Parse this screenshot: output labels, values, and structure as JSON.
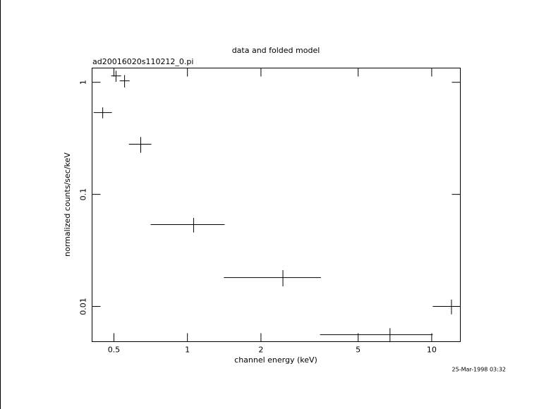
{
  "chart_data": {
    "type": "scatter",
    "title": "data and folded model",
    "subtitle": "ad20016020s110212_0.pi",
    "x_label": "channel energy (keV)",
    "y_label": "normalized counts/sec/keV",
    "timestamp": "25-Mar-1998 03:32",
    "log_x": true,
    "log_y": true,
    "color": "#000000",
    "x": [
      0.45,
      0.51,
      0.553,
      0.644,
      1.06,
      2.46,
      6.75,
      12.05
    ],
    "x_lo": [
      0.413,
      0.487,
      0.528,
      0.576,
      0.707,
      1.41,
      3.49,
      10.1
    ],
    "x_hi": [
      0.491,
      0.535,
      0.58,
      0.712,
      1.42,
      3.52,
      10.1,
      13.1
    ],
    "values": [
      0.537,
      1.14,
      1.03,
      0.28,
      0.0537,
      0.0181,
      0.0056,
      0.01
    ],
    "yerr": [
      0.06,
      0.13,
      0.13,
      0.045,
      0.008,
      0.003,
      0.0008,
      0.0015
    ],
    "xlim": [
      0.407,
      13.1
    ],
    "ylim": [
      0.00485,
      1.34
    ],
    "xticks": [
      0.5,
      1,
      2,
      5,
      10
    ],
    "yticks": [
      0.01,
      0.1,
      1
    ]
  }
}
